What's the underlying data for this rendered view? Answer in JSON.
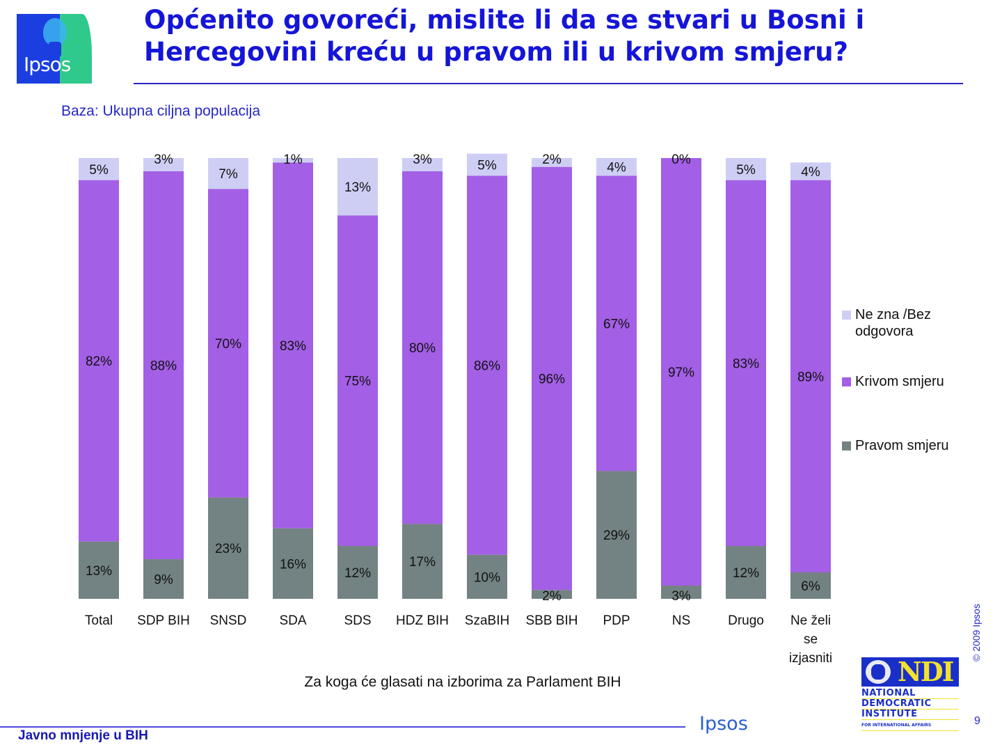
{
  "header": {
    "logo_text": "Ipsos",
    "title": "Općenito govoreći, mislite li da se stvari u Bosni i Hercegovini kreću u pravom ili u krivom smjeru?",
    "base": "Baza: Ukupna ciljna populacija"
  },
  "colors": {
    "pravom": "#738282",
    "krivom": "#A35FE5",
    "ne_zna": "#CECEF5",
    "title": "#1515D8"
  },
  "chart_data": {
    "type": "bar",
    "stacked": true,
    "title": "Općenito govoreći, mislite li da se stvari u Bosni i Hercegovini kreću u pravom ili u krivom smjeru?",
    "xlabel": "Za koga će glasati na izborima za Parlament BIH",
    "ylabel": "",
    "ylim": [
      0,
      100
    ],
    "grid": false,
    "legend_position": "right",
    "categories": [
      "Total",
      "SDP BIH",
      "SNSD",
      "SDA",
      "SDS",
      "HDZ BIH",
      "SzaBIH",
      "SBB BIH",
      "PDP",
      "NS",
      "Drugo",
      "Ne želi se izjasniti"
    ],
    "category_lines": [
      [
        "Total"
      ],
      [
        "SDP BIH"
      ],
      [
        "SNSD"
      ],
      [
        "SDA"
      ],
      [
        "SDS"
      ],
      [
        "HDZ BIH"
      ],
      [
        "SzaBIH"
      ],
      [
        "SBB BIH"
      ],
      [
        "PDP"
      ],
      [
        "NS"
      ],
      [
        "Drugo"
      ],
      [
        "Ne želi",
        "se",
        "izjasniti"
      ]
    ],
    "series": [
      {
        "name": "Pravom smjeru",
        "key": "pravom",
        "values": [
          13,
          9,
          23,
          16,
          12,
          17,
          10,
          2,
          29,
          3,
          12,
          6
        ]
      },
      {
        "name": "Krivom smjeru",
        "key": "krivom",
        "values": [
          82,
          88,
          70,
          83,
          75,
          80,
          86,
          96,
          67,
          97,
          83,
          89
        ]
      },
      {
        "name": "Ne zna /Bez odgovora",
        "key": "ne_zna",
        "values": [
          5,
          3,
          7,
          1,
          13,
          3,
          5,
          2,
          4,
          0,
          5,
          4
        ]
      }
    ],
    "legend": [
      {
        "key": "ne_zna",
        "lines": [
          "Ne zna /Bez",
          "odgovora"
        ]
      },
      {
        "key": "krivom",
        "lines": [
          "Krivom smjeru"
        ]
      },
      {
        "key": "pravom",
        "lines": [
          "Pravom smjeru"
        ]
      }
    ]
  },
  "footer": {
    "section": "Javno mnjenje u BIH",
    "brand": "Ipsos",
    "copyright": "© 2009 Ipsos",
    "page_number": "9",
    "ndi_letters": "NDI",
    "ndi_lines": [
      "NATIONAL",
      "DEMOCRATIC",
      "INSTITUTE",
      "FOR INTERNATIONAL AFFAIRS"
    ]
  }
}
